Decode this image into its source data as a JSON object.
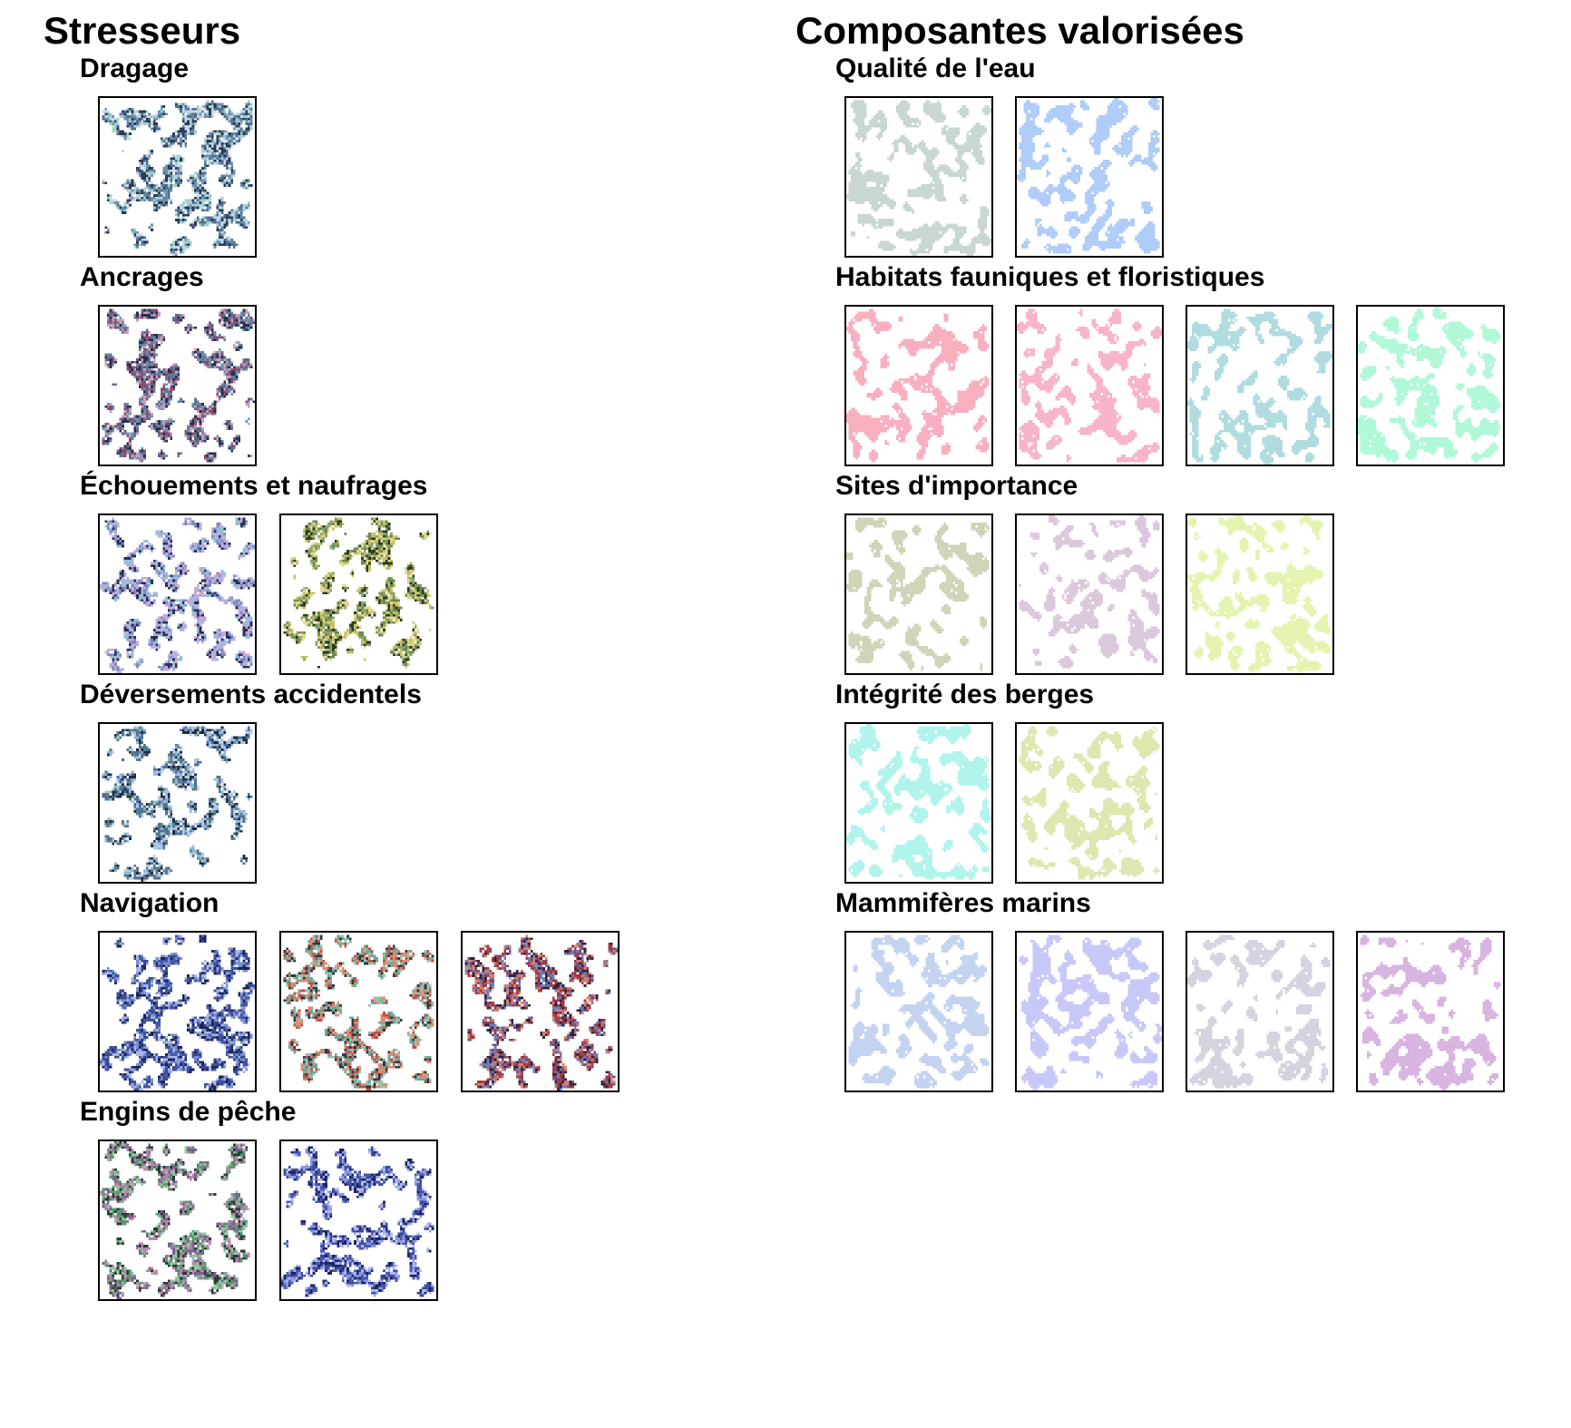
{
  "left": {
    "title": "Stresseurs",
    "groups": [
      {
        "label": "Dragage",
        "maps": [
          {
            "style": "speckle",
            "palette": [
              "#6f8fb0",
              "#9fd0c8",
              "#2b3a52",
              "#c9d8ee",
              "#4f6f8f"
            ],
            "seed": 11
          }
        ]
      },
      {
        "label": "Ancrages",
        "maps": [
          {
            "style": "speckle",
            "palette": [
              "#8a4a6e",
              "#6d8fb0",
              "#2c2f4a",
              "#c9a0b8",
              "#5c7a9a"
            ],
            "seed": 23
          }
        ]
      },
      {
        "label": "Échouements et naufrages",
        "maps": [
          {
            "style": "speckle",
            "palette": [
              "#7f86c2",
              "#b8b0e0",
              "#2a2f55",
              "#8fc0d8",
              "#c8a7d8"
            ],
            "seed": 37
          },
          {
            "style": "speckle",
            "palette": [
              "#c8c060",
              "#6a8a50",
              "#2c3a20",
              "#e0d890",
              "#8aa070"
            ],
            "seed": 41
          }
        ]
      },
      {
        "label": "Déversements accidentels",
        "maps": [
          {
            "style": "speckle",
            "palette": [
              "#4d6f9a",
              "#8fb7d9",
              "#1f2c45",
              "#b4c8e8",
              "#5a7e7a"
            ],
            "seed": 53
          }
        ]
      },
      {
        "label": "Navigation",
        "maps": [
          {
            "style": "speckle",
            "palette": [
              "#4458a8",
              "#7a8ed0",
              "#1c2457",
              "#a8b6e8",
              "#3a4a8f"
            ],
            "seed": 61
          },
          {
            "style": "speckle",
            "palette": [
              "#c0504a",
              "#6aa89a",
              "#2a3a40",
              "#e08a70",
              "#9ac0b0"
            ],
            "seed": 67
          },
          {
            "style": "speckle",
            "palette": [
              "#a8353a",
              "#6880c0",
              "#2a2540",
              "#d88070",
              "#8c4a66"
            ],
            "seed": 71
          }
        ]
      },
      {
        "label": "Engins de pêche",
        "maps": [
          {
            "style": "speckle",
            "palette": [
              "#5a9a70",
              "#c080b0",
              "#2a3a30",
              "#90c8a0",
              "#7a6090"
            ],
            "seed": 79
          },
          {
            "style": "speckle",
            "palette": [
              "#4a58b0",
              "#8a98e0",
              "#1c2460",
              "#b0b8f0",
              "#3c4a9a"
            ],
            "seed": 83
          }
        ]
      }
    ]
  },
  "right": {
    "title": "Composantes valorisées",
    "groups": [
      {
        "label": "Qualité de l'eau",
        "maps": [
          {
            "style": "solid",
            "color": "#c8d6d4",
            "seed": 101
          },
          {
            "style": "solid",
            "color": "#b0ccf8",
            "seed": 103
          }
        ]
      },
      {
        "label": "Habitats fauniques et floristiques",
        "maps": [
          {
            "style": "solid",
            "color": "#f8b0c0",
            "seed": 107
          },
          {
            "style": "solid",
            "color": "#f8b4c8",
            "seed": 109
          },
          {
            "style": "solid",
            "color": "#b0dce0",
            "seed": 113
          },
          {
            "style": "solid",
            "color": "#b0f8d8",
            "seed": 127
          }
        ]
      },
      {
        "label": "Sites d'importance",
        "maps": [
          {
            "style": "solid",
            "color": "#d0d4b8",
            "seed": 131
          },
          {
            "style": "solid",
            "color": "#dcc8dc",
            "seed": 137
          },
          {
            "style": "solid",
            "color": "#e4f4b0",
            "seed": 139
          }
        ]
      },
      {
        "label": "Intégrité des berges",
        "maps": [
          {
            "style": "solid",
            "color": "#b0f4ec",
            "seed": 149
          },
          {
            "style": "solid",
            "color": "#dce8b0",
            "seed": 151
          }
        ]
      },
      {
        "label": "Mammifères marins",
        "maps": [
          {
            "style": "solid",
            "color": "#c4d4f0",
            "seed": 157
          },
          {
            "style": "solid",
            "color": "#c8c8f8",
            "seed": 163
          },
          {
            "style": "solid",
            "color": "#d4d4e0",
            "seed": 167
          },
          {
            "style": "solid",
            "color": "#d8b4e0",
            "seed": 173
          }
        ]
      }
    ]
  }
}
